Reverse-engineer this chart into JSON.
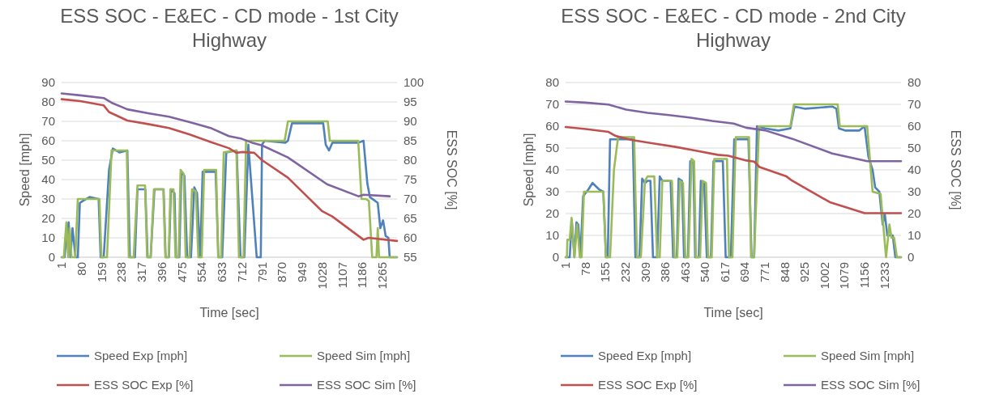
{
  "chart_data": [
    {
      "type": "line",
      "title": "ESS SOC - E&EC - CD mode - 1st City Highway",
      "xlabel": "Time [sec]",
      "ylabel": "Speed [mph]",
      "y2label": "ESS SOC [%]",
      "xlim": [
        1,
        1323
      ],
      "xticks": [
        1,
        80,
        159,
        238,
        317,
        396,
        475,
        554,
        633,
        712,
        791,
        870,
        949,
        1028,
        1107,
        1186,
        1265
      ],
      "ylim": [
        0,
        90
      ],
      "yticks": [
        0,
        10,
        20,
        30,
        40,
        50,
        60,
        70,
        80,
        90
      ],
      "y2lim": [
        55,
        100
      ],
      "y2ticks": [
        55,
        60,
        65,
        70,
        75,
        80,
        85,
        90,
        95,
        100
      ],
      "grid": "y",
      "legend": "bottom",
      "line_style": "solid",
      "marker": "none",
      "series": [
        {
          "name": "Speed Exp [mph]",
          "color": "#4f81bd",
          "x": [
            1,
            13,
            18,
            29,
            36,
            44,
            56,
            65,
            73,
            85,
            111,
            147,
            155,
            167,
            188,
            203,
            229,
            260,
            270,
            290,
            300,
            331,
            340,
            352,
            367,
            403,
            411,
            424,
            432,
            446,
            452,
            465,
            473,
            485,
            496,
            511,
            524,
            535,
            547,
            557,
            608,
            619,
            634,
            650,
            691,
            706,
            721,
            737,
            770,
            786,
            791,
            801,
            883,
            893,
            909,
            945,
            1006,
            1032,
            1042,
            1055,
            1068,
            1171,
            1191,
            1206,
            1216,
            1247,
            1257,
            1268,
            1278,
            1289,
            1294,
            1323
          ],
          "values": [
            0,
            0,
            8,
            18,
            0,
            15,
            0,
            0,
            28,
            29,
            31,
            30,
            0,
            0,
            45,
            56,
            54,
            55,
            0,
            0,
            35,
            35,
            0,
            0,
            35,
            35,
            0,
            0,
            35,
            33,
            0,
            0,
            44,
            42,
            0,
            0,
            36,
            33,
            0,
            44,
            44,
            0,
            0,
            54,
            55,
            0,
            0,
            58,
            0,
            0,
            58,
            60,
            59,
            60,
            69,
            69,
            69,
            69,
            58,
            55,
            59,
            59,
            60,
            38,
            31,
            28,
            15,
            19,
            11,
            10,
            0,
            0
          ]
        },
        {
          "name": "Speed Sim [mph]",
          "color": "#9bbb59",
          "x": [
            1,
            10,
            14,
            20,
            27,
            33,
            40,
            55,
            65,
            150,
            158,
            180,
            198,
            258,
            266,
            285,
            300,
            330,
            338,
            352,
            365,
            402,
            410,
            423,
            430,
            442,
            450,
            462,
            470,
            482,
            490,
            505,
            515,
            530,
            540,
            553,
            563,
            610,
            618,
            630,
            640,
            690,
            700,
            718,
            728,
            800,
            880,
            893,
            1050,
            1058,
            1170,
            1183,
            1200,
            1212,
            1225,
            1242,
            1247,
            1252,
            1323
          ],
          "values": [
            0,
            0,
            8,
            18,
            0,
            15,
            0,
            0,
            30,
            30,
            0,
            0,
            55,
            55,
            0,
            0,
            37,
            37,
            0,
            0,
            35,
            35,
            0,
            0,
            35,
            35,
            0,
            0,
            45,
            43,
            0,
            0,
            35,
            34,
            0,
            0,
            45,
            45,
            0,
            0,
            54,
            55,
            0,
            0,
            60,
            60,
            60,
            70,
            70,
            60,
            60,
            30,
            30,
            29,
            0,
            0,
            15,
            0,
            0
          ]
        },
        {
          "name": "ESS SOC Exp [%]",
          "color": "#c0504d",
          "axis": "y2",
          "x": [
            1,
            75,
            167,
            188,
            260,
            342,
            424,
            506,
            588,
            660,
            690,
            712,
            760,
            791,
            893,
            1027,
            1068,
            1191,
            1211,
            1323
          ],
          "values": [
            95.7,
            95.2,
            94.1,
            92.4,
            90.2,
            89.3,
            88.3,
            86.6,
            84.7,
            83.1,
            81.9,
            82.1,
            81.9,
            80,
            75.5,
            66.9,
            65.5,
            59.5,
            60,
            59.2
          ]
        },
        {
          "name": "ESS SOC Sim [%]",
          "color": "#8064a2",
          "axis": "y2",
          "x": [
            1,
            75,
            167,
            198,
            260,
            342,
            424,
            506,
            588,
            660,
            711,
            752,
            791,
            893,
            1047,
            1171,
            1191,
            1294
          ],
          "values": [
            97.2,
            96.7,
            96,
            94.8,
            93.1,
            92.1,
            91.2,
            89.8,
            88.3,
            86.2,
            85.5,
            84.5,
            83.8,
            80.7,
            73.8,
            70.7,
            71.1,
            70.7
          ]
        }
      ]
    },
    {
      "type": "line",
      "title": "ESS SOC - E&EC - CD mode - 2nd City Highway",
      "xlabel": "Time [sec]",
      "ylabel": "Speed [mph]",
      "y2label": "ESS SOC [%]",
      "xlim": [
        1,
        1298
      ],
      "xticks": [
        1,
        78,
        155,
        232,
        309,
        386,
        463,
        540,
        617,
        694,
        771,
        848,
        925,
        1002,
        1079,
        1156,
        1233
      ],
      "ylim": [
        0,
        80
      ],
      "yticks": [
        0,
        10,
        20,
        30,
        40,
        50,
        60,
        70,
        80
      ],
      "y2lim": [
        0,
        80
      ],
      "y2ticks": [
        0,
        10,
        20,
        30,
        40,
        50,
        60,
        70,
        80
      ],
      "grid": "y",
      "legend": "bottom",
      "line_style": "solid",
      "marker": "none",
      "series": [
        {
          "name": "Speed Exp [mph]",
          "color": "#4f81bd",
          "x": [
            1,
            17,
            25,
            35,
            43,
            50,
            58,
            69,
            89,
            105,
            131,
            147,
            157,
            164,
            173,
            235,
            261,
            271,
            287,
            297,
            308,
            318,
            329,
            339,
            355,
            365,
            375,
            407,
            417,
            431,
            438,
            451,
            459,
            474,
            483,
            495,
            502,
            516,
            524,
            537,
            547,
            563,
            573,
            609,
            620,
            640,
            653,
            708,
            720,
            730,
            741,
            772,
            824,
            870,
            886,
            928,
            1032,
            1048,
            1058,
            1084,
            1136,
            1157,
            1172,
            1188,
            1198,
            1214,
            1227,
            1235,
            1245,
            1266,
            1276,
            1298
          ],
          "values": [
            0,
            0,
            17,
            0,
            16,
            15,
            0,
            28,
            31,
            34,
            31,
            30,
            0,
            0,
            54,
            54,
            54,
            0,
            0,
            36,
            34,
            35,
            35,
            0,
            0,
            37,
            35,
            35,
            0,
            0,
            36,
            35,
            0,
            0,
            44,
            43,
            0,
            0,
            35,
            34,
            0,
            0,
            44,
            44,
            0,
            0,
            54,
            54,
            0,
            0,
            60,
            59,
            58,
            59,
            69,
            68,
            69,
            68,
            59,
            58,
            58,
            60,
            46,
            40,
            32,
            30,
            15,
            20,
            10,
            10,
            0,
            0
          ]
        },
        {
          "name": "Speed Sim [mph]",
          "color": "#9bbb59",
          "x": [
            1,
            6,
            8,
            17,
            24,
            35,
            46,
            56,
            63,
            72,
            147,
            157,
            173,
            188,
            204,
            266,
            277,
            292,
            308,
            318,
            344,
            355,
            365,
            375,
            412,
            422,
            433,
            443,
            455,
            464,
            476,
            488,
            498,
            505,
            521,
            531,
            544,
            552,
            566,
            576,
            625,
            633,
            646,
            659,
            710,
            718,
            730,
            749,
            870,
            884,
            1053,
            1061,
            1167,
            1188,
            1219,
            1240,
            1253,
            1261,
            1271,
            1282,
            1298
          ],
          "values": [
            0,
            0,
            8,
            8,
            18,
            0,
            15,
            0,
            0,
            30,
            30,
            0,
            0,
            40,
            55,
            55,
            0,
            0,
            35,
            37,
            37,
            0,
            0,
            35,
            35,
            0,
            0,
            35,
            34,
            0,
            0,
            45,
            44,
            0,
            0,
            35,
            34,
            0,
            0,
            45,
            45,
            0,
            0,
            55,
            55,
            0,
            0,
            60,
            60,
            70,
            70,
            60,
            60,
            30,
            29,
            0,
            15,
            9,
            9,
            0,
            0
          ]
        },
        {
          "name": "ESS SOC Exp [%]",
          "color": "#c0504d",
          "axis": "y2",
          "x": [
            1,
            79,
            167,
            193,
            256,
            339,
            422,
            505,
            589,
            630,
            700,
            730,
            751,
            855,
            876,
            1023,
            1157,
            1298
          ],
          "values": [
            59.6,
            58.7,
            57.4,
            55.6,
            53.7,
            52.1,
            50.6,
            48.8,
            46.9,
            46.5,
            44.3,
            43.8,
            41.3,
            37,
            35.1,
            25.2,
            20.2,
            20.2
          ]
        },
        {
          "name": "ESS SOC Sim [%]",
          "color": "#8064a2",
          "axis": "y2",
          "x": [
            1,
            79,
            167,
            235,
            318,
            401,
            485,
            568,
            651,
            699,
            772,
            876,
            1032,
            1167,
            1298
          ],
          "values": [
            71.3,
            70.8,
            69.9,
            67.6,
            66.1,
            65.1,
            63.9,
            62.4,
            61.2,
            59.3,
            58.1,
            54.3,
            47.5,
            44,
            44
          ]
        }
      ]
    }
  ]
}
